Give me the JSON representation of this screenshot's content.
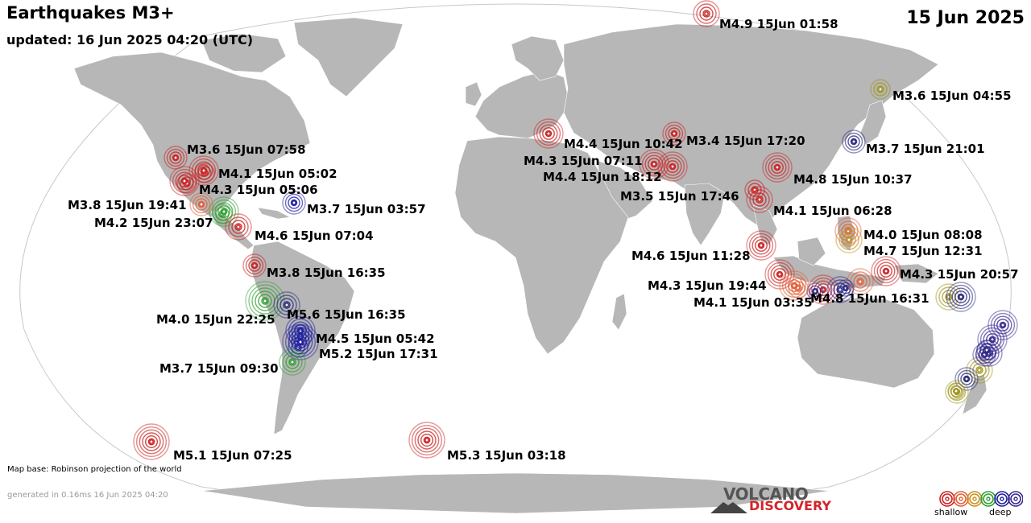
{
  "header": {
    "title": "Earthquakes M3+",
    "updated": "updated: 16 Jun 2025 04:20 (UTC)",
    "date": "15 Jun 2025"
  },
  "footer": {
    "map_base": "Map base: Robinson projection of the world",
    "generated": "generated in 0.16ms 16 Jun 2025 04:20"
  },
  "logo": {
    "line1": "VOLCANO",
    "line2": "DISCOVERY"
  },
  "legend": {
    "shallow": "shallow",
    "deep": "deep",
    "colors": [
      "#cc2222",
      "#e0603a",
      "#c89020",
      "#30a030",
      "#2020a0",
      "#3a2a90"
    ]
  },
  "colors": {
    "land": "#b7b7b7",
    "ocean": "#ffffff",
    "depth_shallow": "#cc2222",
    "depth_mid_shallow": "#e0603a",
    "depth_mid": "#c89020",
    "depth_intermediate": "#30a030",
    "depth_deep": "#2020a0"
  },
  "labeled_quakes": [
    {
      "label": "M4.9 15Jun 01:58",
      "color": "#cc2222"
    },
    {
      "label": "M3.6 15Jun 04:55",
      "color": "#a0961e"
    },
    {
      "label": "M3.7 15Jun 21:01",
      "color": "#2a2a80"
    },
    {
      "label": "M4.4 15Jun 10:42",
      "color": "#cc2222"
    },
    {
      "label": "M3.4 15Jun 17:20",
      "color": "#cc2222"
    },
    {
      "label": "M4.3 15Jun 07:11",
      "color": "#cc2222"
    },
    {
      "label": "M4.4 15Jun 18:12",
      "color": "#cc2222"
    },
    {
      "label": "M4.8 15Jun 10:37",
      "color": "#cc2222"
    },
    {
      "label": "M3.5 15Jun 17:46",
      "color": "#cc2222"
    },
    {
      "label": "M4.1 15Jun 06:28",
      "color": "#cc2222"
    },
    {
      "label": "M4.0 15Jun 08:08",
      "color": "#e0603a"
    },
    {
      "label": "M4.7 15Jun 12:31",
      "color": "#c89020"
    },
    {
      "label": "M4.6 15Jun 11:28",
      "color": "#cc2222"
    },
    {
      "label": "M4.3 15Jun 20:57",
      "color": "#cc2222"
    },
    {
      "label": "M4.3 15Jun 19:44",
      "color": "#cc2222"
    },
    {
      "label": "M4.1 15Jun 03:35",
      "color": "#e0603a"
    },
    {
      "label": "M4.8 15Jun 16:31",
      "color": "#2a2a90"
    },
    {
      "label": "M3.6 15Jun 07:58",
      "color": "#cc2222"
    },
    {
      "label": "M4.1 15Jun 05:02",
      "color": "#cc2222"
    },
    {
      "label": "M4.3 15Jun 05:06",
      "color": "#cc2222"
    },
    {
      "label": "M3.8 15Jun 19:41",
      "color": "#e0603a"
    },
    {
      "label": "M3.7 15Jun 03:57",
      "color": "#2020a0"
    },
    {
      "label": "M4.2 15Jun 23:07",
      "color": "#30a030"
    },
    {
      "label": "M4.6 15Jun 07:04",
      "color": "#cc2222"
    },
    {
      "label": "M3.8 15Jun 16:35",
      "color": "#cc2222"
    },
    {
      "label": "M4.0 15Jun 22:25",
      "color": "#30a030"
    },
    {
      "label": "M5.6 15Jun 16:35",
      "color": "#2a2a80"
    },
    {
      "label": "M4.5 15Jun 05:42",
      "color": "#2020a0"
    },
    {
      "label": "M5.2 15Jun 17:31",
      "color": "#2020a0"
    },
    {
      "label": "M3.7 15Jun 09:30",
      "color": "#30a030"
    },
    {
      "label": "M5.1 15Jun 07:25",
      "color": "#cc2222"
    },
    {
      "label": "M5.3 15Jun 03:18",
      "color": "#cc2222"
    }
  ],
  "unlabeled_quakes": [
    {
      "color": "#cc2222"
    },
    {
      "color": "#a0961e"
    },
    {
      "color": "#2a2a80"
    },
    {
      "color": "#a0961e"
    },
    {
      "color": "#2a2a80"
    },
    {
      "color": "#3a2a90"
    },
    {
      "color": "#3a2a90"
    },
    {
      "color": "#3a2a90"
    },
    {
      "color": "#3a2a90"
    },
    {
      "color": "#a0961e"
    },
    {
      "color": "#2a2a80"
    },
    {
      "color": "#a0961e"
    },
    {
      "color": "#2a2a80"
    },
    {
      "color": "#2a2a80"
    },
    {
      "color": "#30a030"
    },
    {
      "color": "#cc2222"
    },
    {
      "color": "#cc2222"
    },
    {
      "color": "#e0603a"
    },
    {
      "color": "#e0603a"
    },
    {
      "color": "#2020a0"
    },
    {
      "color": "#2020a0"
    }
  ]
}
